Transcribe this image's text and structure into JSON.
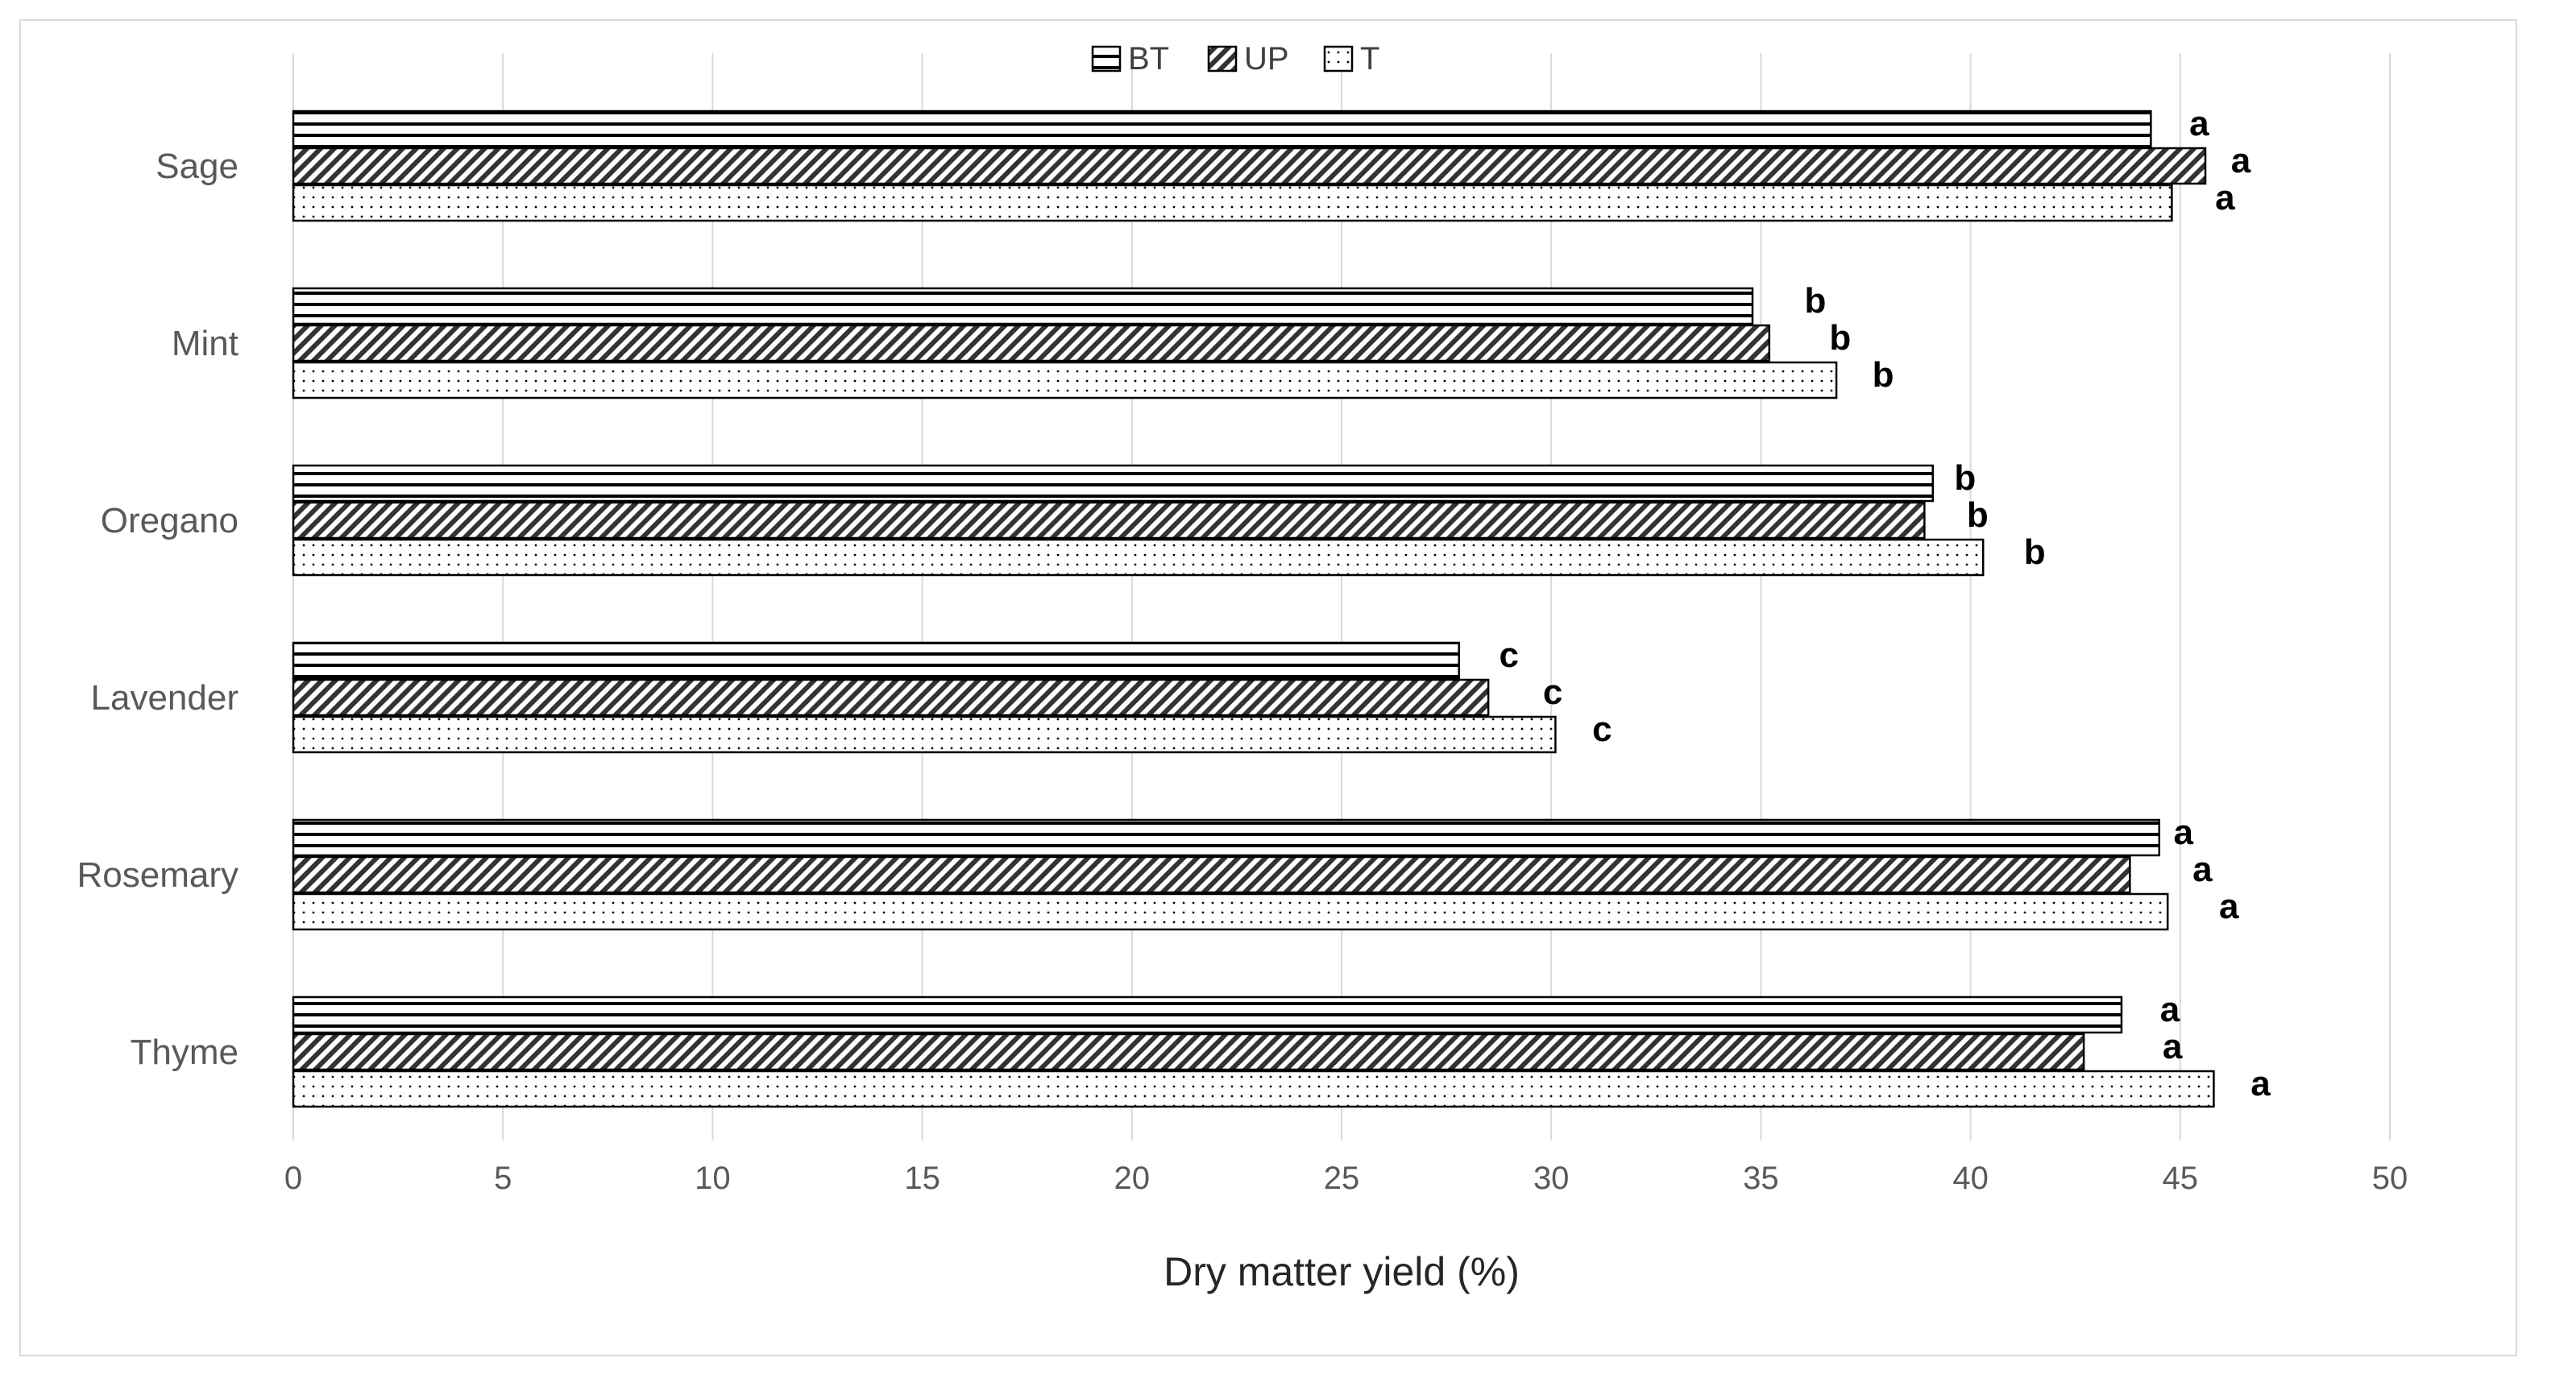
{
  "chart_data": {
    "type": "bar",
    "orientation": "horizontal",
    "categories": [
      "Sage",
      "Mint",
      "Oregano",
      "Lavender",
      "Rosemary",
      "Thyme"
    ],
    "series": [
      {
        "name": "BT",
        "pattern": "horizontal-stripes",
        "values": [
          44.3,
          34.8,
          39.1,
          27.8,
          44.5,
          43.6
        ],
        "labels": [
          "a",
          "b",
          "b",
          "c",
          "a",
          "a"
        ]
      },
      {
        "name": "UP",
        "pattern": "diagonal-hatch",
        "values": [
          45.6,
          35.2,
          38.9,
          28.5,
          43.8,
          42.7
        ],
        "labels": [
          "a",
          "b",
          "b",
          "c",
          "a",
          "a"
        ]
      },
      {
        "name": "T",
        "pattern": "dots",
        "values": [
          44.8,
          36.8,
          40.3,
          30.1,
          44.7,
          45.8
        ],
        "labels": [
          "a",
          "b",
          "b",
          "c",
          "a",
          "a"
        ]
      }
    ],
    "xlabel": "Dry matter yield (%)",
    "ylabel": "",
    "xlim": [
      0,
      50
    ],
    "xticks": [
      "0",
      "5",
      "10",
      "15",
      "20",
      "25",
      "30",
      "35",
      "40",
      "45",
      "50"
    ],
    "grid": "vertical gridlines",
    "legend_position": "top-center",
    "colors": {
      "bar_stroke": "#000000",
      "grid": "#d9d9d9",
      "frame": "#d9d9d9"
    }
  }
}
